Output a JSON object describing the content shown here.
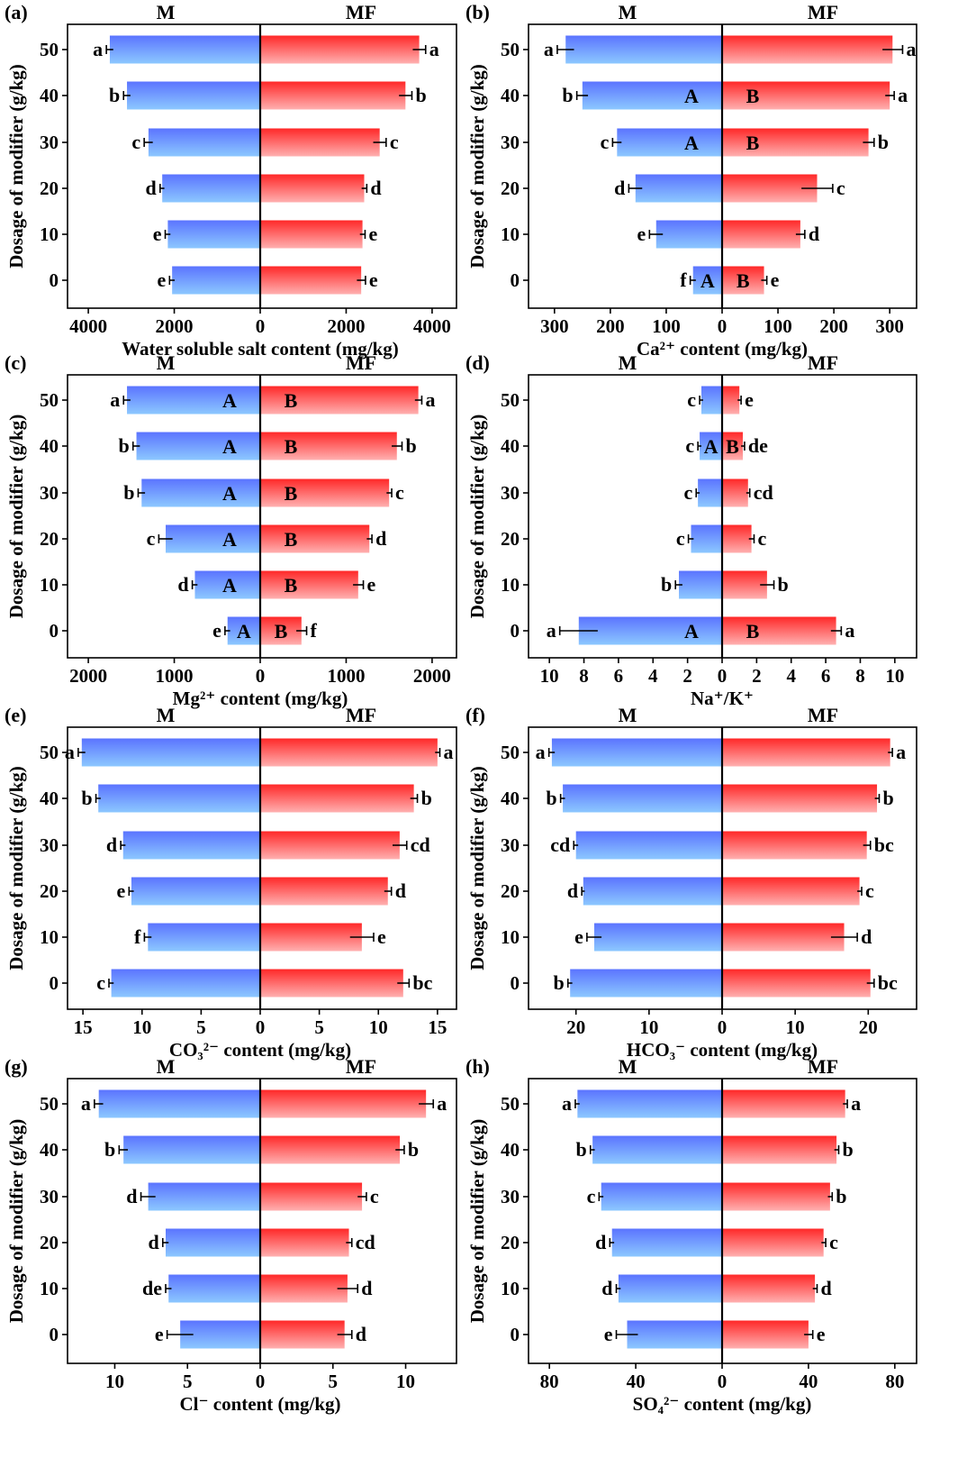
{
  "defs": {
    "M": {
      "c1": "#5b74ff",
      "c2": "#8cc8ff"
    },
    "MF": {
      "c1": "#ff2828",
      "c2": "#ffb0b0"
    }
  },
  "chart_data": [
    {
      "type": "bar",
      "orientation": "horizontal-mirrored",
      "panel_label": "(a)",
      "left_title": "M",
      "right_title": "MF",
      "xlabel": "Water soluble salt content (mg/kg)",
      "ylabel": "Dosage of modifier (g/kg)",
      "categories": [
        "0",
        "10",
        "20",
        "30",
        "40",
        "50"
      ],
      "xlim": [
        0,
        4400
      ],
      "xticks": [
        0,
        2000,
        4000
      ],
      "xtick_labels": [
        "0",
        "2000",
        "4000"
      ],
      "series": [
        {
          "name": "M",
          "side": "left",
          "values": [
            2050,
            2150,
            2280,
            2600,
            3100,
            3500
          ],
          "errors": [
            60,
            60,
            50,
            100,
            80,
            80
          ],
          "labels": [
            "e",
            "e",
            "d",
            "c",
            "b",
            "a"
          ],
          "inner": [
            "",
            "",
            "",
            "",
            "",
            ""
          ]
        },
        {
          "name": "MF",
          "side": "right",
          "values": [
            2350,
            2380,
            2420,
            2780,
            3380,
            3700
          ],
          "errors": [
            100,
            60,
            60,
            150,
            150,
            150
          ],
          "labels": [
            "e",
            "e",
            "d",
            "c",
            "b",
            "a"
          ],
          "inner": [
            "",
            "",
            "",
            "",
            "",
            ""
          ]
        }
      ]
    },
    {
      "type": "bar",
      "orientation": "horizontal-mirrored",
      "panel_label": "(b)",
      "left_title": "M",
      "right_title": "MF",
      "xlabel": "Ca²⁺ content (mg/kg)",
      "ylabel": "Dosage of modifier (g/kg)",
      "categories": [
        "0",
        "10",
        "20",
        "30",
        "40",
        "50"
      ],
      "xlim": [
        0,
        340
      ],
      "xticks": [
        0,
        100,
        200,
        300
      ],
      "xtick_labels": [
        "0",
        "100",
        "200",
        "300"
      ],
      "series": [
        {
          "name": "M",
          "side": "left",
          "values": [
            52,
            118,
            155,
            188,
            250,
            280
          ],
          "errors": [
            5,
            12,
            12,
            8,
            10,
            15
          ],
          "labels": [
            "f",
            "e",
            "d",
            "c",
            "b",
            "a"
          ],
          "inner": [
            "A",
            "",
            "",
            "A",
            "A",
            ""
          ]
        },
        {
          "name": "MF",
          "side": "right",
          "values": [
            75,
            140,
            170,
            262,
            300,
            305
          ],
          "errors": [
            5,
            8,
            28,
            10,
            8,
            18
          ],
          "labels": [
            "e",
            "d",
            "c",
            "b",
            "a",
            "a"
          ],
          "inner": [
            "B",
            "",
            "",
            "B",
            "B",
            ""
          ]
        }
      ]
    },
    {
      "type": "bar",
      "orientation": "horizontal-mirrored",
      "panel_label": "(c)",
      "left_title": "M",
      "right_title": "MF",
      "xlabel": "Mg²⁺ content (mg/kg)",
      "ylabel": "Dosage of modifier (g/kg)",
      "categories": [
        "0",
        "10",
        "20",
        "30",
        "40",
        "50"
      ],
      "xlim": [
        0,
        2200
      ],
      "xticks": [
        0,
        1000,
        2000
      ],
      "xtick_labels": [
        "0",
        "1000",
        "2000"
      ],
      "series": [
        {
          "name": "M",
          "side": "left",
          "values": [
            380,
            760,
            1100,
            1380,
            1440,
            1550
          ],
          "errors": [
            30,
            30,
            80,
            40,
            40,
            40
          ],
          "labels": [
            "e",
            "d",
            "c",
            "b",
            "b",
            "a"
          ],
          "inner": [
            "A",
            "A",
            "A",
            "A",
            "A",
            "A"
          ]
        },
        {
          "name": "MF",
          "side": "right",
          "values": [
            480,
            1140,
            1270,
            1500,
            1590,
            1840
          ],
          "errors": [
            60,
            60,
            30,
            30,
            60,
            40
          ],
          "labels": [
            "f",
            "e",
            "d",
            "c",
            "b",
            "a"
          ],
          "inner": [
            "B",
            "B",
            "B",
            "B",
            "B",
            "B"
          ]
        }
      ]
    },
    {
      "type": "bar",
      "orientation": "horizontal-mirrored",
      "panel_label": "(d)",
      "left_title": "M",
      "right_title": "MF",
      "xlabel": "Na⁺/K⁺",
      "ylabel": "Dosage of modifier (g/kg)",
      "categories": [
        "0",
        "10",
        "20",
        "30",
        "40",
        "50"
      ],
      "xlim": [
        0,
        11
      ],
      "xticks": [
        0,
        2,
        4,
        6,
        8,
        10
      ],
      "xtick_labels": [
        "0",
        "2",
        "4",
        "6",
        "8",
        "10"
      ],
      "series": [
        {
          "name": "M",
          "side": "left",
          "values": [
            8.3,
            2.5,
            1.8,
            1.4,
            1.3,
            1.2
          ],
          "errors": [
            1.1,
            0.2,
            0.15,
            0.1,
            0.1,
            0.1
          ],
          "labels": [
            "a",
            "b",
            "c",
            "c",
            "c",
            "c"
          ],
          "inner": [
            "A",
            "",
            "",
            "",
            "A",
            ""
          ]
        },
        {
          "name": "MF",
          "side": "right",
          "values": [
            6.6,
            2.6,
            1.7,
            1.5,
            1.2,
            1.0
          ],
          "errors": [
            0.3,
            0.4,
            0.15,
            0.1,
            0.1,
            0.1
          ],
          "labels": [
            "a",
            "b",
            "c",
            "cd",
            "de",
            "e"
          ],
          "inner": [
            "B",
            "",
            "",
            "",
            "B",
            ""
          ]
        }
      ]
    },
    {
      "type": "bar",
      "orientation": "horizontal-mirrored",
      "panel_label": "(e)",
      "left_title": "M",
      "right_title": "MF",
      "xlabel": "CO₃²⁻ content (mg/kg)",
      "ylabel": "Dosage of modifier (g/kg)",
      "categories": [
        "0",
        "10",
        "20",
        "30",
        "40",
        "50"
      ],
      "xlim": [
        0,
        16
      ],
      "xticks": [
        0,
        5,
        10,
        15
      ],
      "xtick_labels": [
        "0",
        "5",
        "10",
        "15"
      ],
      "series": [
        {
          "name": "M",
          "side": "left",
          "values": [
            12.6,
            9.5,
            10.9,
            11.6,
            13.7,
            15.1
          ],
          "errors": [
            0.2,
            0.3,
            0.2,
            0.2,
            0.2,
            0.3
          ],
          "labels": [
            "c",
            "f",
            "e",
            "d",
            "b",
            "a"
          ],
          "inner": [
            "",
            "",
            "",
            "",
            "",
            ""
          ]
        },
        {
          "name": "MF",
          "side": "right",
          "values": [
            12.1,
            8.6,
            10.8,
            11.8,
            13.0,
            15.0
          ],
          "errors": [
            0.5,
            1.0,
            0.3,
            0.6,
            0.3,
            0.2
          ],
          "labels": [
            "bc",
            "e",
            "d",
            "cd",
            "b",
            "a"
          ],
          "inner": [
            "",
            "",
            "",
            "",
            "",
            ""
          ]
        }
      ]
    },
    {
      "type": "bar",
      "orientation": "horizontal-mirrored",
      "panel_label": "(f)",
      "left_title": "M",
      "right_title": "MF",
      "xlabel": "HCO₃⁻ content (mg/kg)",
      "ylabel": "Dosage of modifier (g/kg)",
      "categories": [
        "0",
        "10",
        "20",
        "30",
        "40",
        "50"
      ],
      "xlim": [
        0,
        26
      ],
      "xticks": [
        0,
        10,
        20
      ],
      "xtick_labels": [
        "0",
        "10",
        "20"
      ],
      "series": [
        {
          "name": "M",
          "side": "left",
          "values": [
            20.8,
            17.5,
            19.0,
            20.0,
            21.8,
            23.3
          ],
          "errors": [
            0.3,
            1.0,
            0.2,
            0.3,
            0.3,
            0.4
          ],
          "labels": [
            "b",
            "e",
            "d",
            "cd",
            "b",
            "a"
          ],
          "inner": [
            "",
            "",
            "",
            "",
            "",
            ""
          ]
        },
        {
          "name": "MF",
          "side": "right",
          "values": [
            20.3,
            16.7,
            18.8,
            19.8,
            21.2,
            23.0
          ],
          "errors": [
            0.5,
            1.8,
            0.3,
            0.5,
            0.3,
            0.3
          ],
          "labels": [
            "bc",
            "d",
            "c",
            "bc",
            "b",
            "a"
          ],
          "inner": [
            "",
            "",
            "",
            "",
            "",
            ""
          ]
        }
      ]
    },
    {
      "type": "bar",
      "orientation": "horizontal-mirrored",
      "panel_label": "(g)",
      "left_title": "M",
      "right_title": "MF",
      "xlabel": "Cl⁻ content (mg/kg)",
      "ylabel": "Dosage of modifier (g/kg)",
      "categories": [
        "0",
        "10",
        "20",
        "30",
        "40",
        "50"
      ],
      "xlim": [
        0,
        13
      ],
      "xticks": [
        0,
        5,
        10
      ],
      "xtick_labels": [
        "0",
        "5",
        "10"
      ],
      "series": [
        {
          "name": "M",
          "side": "left",
          "values": [
            5.5,
            6.3,
            6.5,
            7.7,
            9.4,
            11.1
          ],
          "errors": [
            0.9,
            0.2,
            0.2,
            0.5,
            0.3,
            0.3
          ],
          "labels": [
            "e",
            "de",
            "d",
            "d",
            "b",
            "a"
          ],
          "inner": [
            "",
            "",
            "",
            "",
            "",
            ""
          ]
        },
        {
          "name": "MF",
          "side": "right",
          "values": [
            5.8,
            6.0,
            6.1,
            7.0,
            9.6,
            11.4
          ],
          "errors": [
            0.5,
            0.7,
            0.2,
            0.3,
            0.3,
            0.5
          ],
          "labels": [
            "d",
            "d",
            "cd",
            "c",
            "b",
            "a"
          ],
          "inner": [
            "",
            "",
            "",
            "",
            "",
            ""
          ]
        }
      ]
    },
    {
      "type": "bar",
      "orientation": "horizontal-mirrored",
      "panel_label": "(h)",
      "left_title": "M",
      "right_title": "MF",
      "xlabel": "SO₄²⁻ content (mg/kg)",
      "ylabel": "Dosage of modifier (g/kg)",
      "categories": [
        "0",
        "10",
        "20",
        "30",
        "40",
        "50"
      ],
      "xlim": [
        0,
        88
      ],
      "xticks": [
        0,
        40,
        80
      ],
      "xtick_labels": [
        "0",
        "40",
        "80"
      ],
      "series": [
        {
          "name": "M",
          "side": "left",
          "values": [
            44,
            48,
            51,
            56,
            60,
            67
          ],
          "errors": [
            5,
            1,
            1,
            1,
            1,
            1
          ],
          "labels": [
            "e",
            "d",
            "d",
            "c",
            "b",
            "a"
          ],
          "inner": [
            "",
            "",
            "",
            "",
            "",
            ""
          ]
        },
        {
          "name": "MF",
          "side": "right",
          "values": [
            40,
            43,
            47,
            50,
            53,
            57
          ],
          "errors": [
            2,
            1,
            1,
            1,
            1,
            1
          ],
          "labels": [
            "e",
            "d",
            "c",
            "b",
            "b",
            "a"
          ],
          "inner": [
            "",
            "",
            "",
            "",
            "",
            ""
          ]
        }
      ]
    }
  ]
}
